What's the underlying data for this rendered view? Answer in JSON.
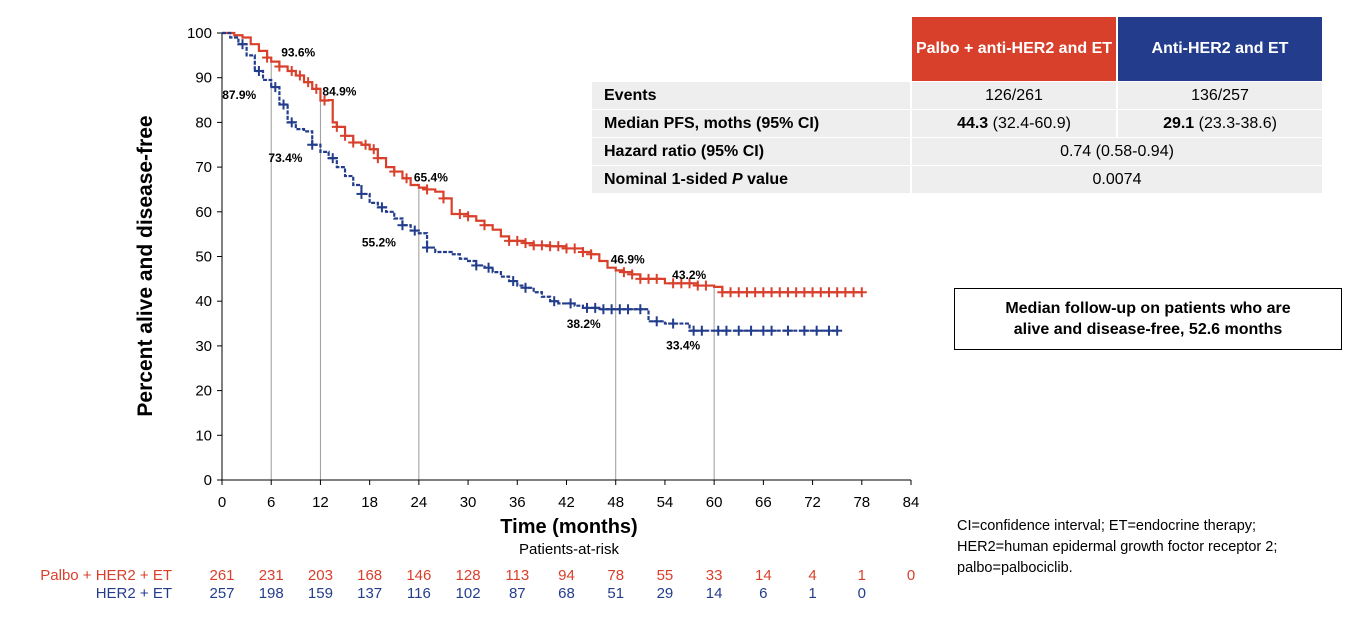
{
  "chart_data": {
    "type": "line",
    "ylabel": "Percent alive and disease-free",
    "xlabel": "Time (months)",
    "xlim": [
      0,
      84
    ],
    "ylim": [
      0,
      100
    ],
    "x_ticks": [
      "0",
      "6",
      "12",
      "18",
      "24",
      "30",
      "36",
      "42",
      "48",
      "54",
      "60",
      "66",
      "72",
      "78",
      "84"
    ],
    "y_ticks": [
      "0",
      "10",
      "20",
      "30",
      "40",
      "50",
      "60",
      "70",
      "80",
      "90",
      "100"
    ],
    "step": true,
    "series": [
      {
        "name": "Palbo + anti-HER2 and ET",
        "color": "#d9402c",
        "points": [
          [
            0,
            100
          ],
          [
            1.5,
            99.5
          ],
          [
            2.5,
            99
          ],
          [
            3.5,
            97.5
          ],
          [
            4.5,
            96
          ],
          [
            5.5,
            94.5
          ],
          [
            6,
            93.6
          ],
          [
            7,
            92.5
          ],
          [
            8,
            91.5
          ],
          [
            9,
            90.5
          ],
          [
            10,
            89
          ],
          [
            11,
            87.5
          ],
          [
            12,
            84.9
          ],
          [
            13,
            85
          ],
          [
            13.5,
            80
          ],
          [
            14,
            79
          ],
          [
            15,
            77
          ],
          [
            16,
            75.5
          ],
          [
            17,
            75
          ],
          [
            18,
            74
          ],
          [
            19,
            72
          ],
          [
            20,
            70
          ],
          [
            21,
            69
          ],
          [
            22,
            67.5
          ],
          [
            23,
            66
          ],
          [
            24,
            65.4
          ],
          [
            25,
            65
          ],
          [
            26,
            64.5
          ],
          [
            27,
            63
          ],
          [
            28,
            59.5
          ],
          [
            30,
            59
          ],
          [
            31,
            58
          ],
          [
            32,
            57
          ],
          [
            33,
            56
          ],
          [
            34,
            54.5
          ],
          [
            35,
            53.5
          ],
          [
            36,
            53.5
          ],
          [
            37,
            53
          ],
          [
            38,
            52.5
          ],
          [
            40,
            52.3
          ],
          [
            42,
            51.8
          ],
          [
            44,
            51
          ],
          [
            45,
            50.5
          ],
          [
            46,
            49
          ],
          [
            47,
            47.5
          ],
          [
            48,
            46.9
          ],
          [
            49,
            46.5
          ],
          [
            50,
            46
          ],
          [
            51,
            45
          ],
          [
            54,
            44
          ],
          [
            56,
            44
          ],
          [
            58,
            43.5
          ],
          [
            60,
            43.2
          ],
          [
            61,
            42
          ],
          [
            65,
            42
          ],
          [
            78,
            42
          ]
        ],
        "censor_x": [
          5.5,
          7,
          8.5,
          9.5,
          10.5,
          11.5,
          12.5,
          14,
          15,
          16,
          17.5,
          18.5,
          19,
          21,
          22.5,
          25,
          27,
          29,
          30,
          32,
          35,
          36,
          37,
          38,
          39,
          40,
          41,
          42,
          43,
          44,
          45,
          49,
          50,
          51,
          52,
          53,
          55,
          56,
          57,
          58,
          59,
          61,
          62,
          63,
          64,
          65,
          66,
          67,
          68,
          69,
          70,
          71,
          72,
          73,
          74,
          75,
          76,
          77,
          78
        ]
      },
      {
        "name": "Anti-HER2 and ET",
        "color": "#233d8c",
        "points": [
          [
            0,
            100
          ],
          [
            1,
            99
          ],
          [
            2,
            97.5
          ],
          [
            3,
            95
          ],
          [
            4,
            91.5
          ],
          [
            5,
            89.5
          ],
          [
            6,
            87.9
          ],
          [
            7,
            84
          ],
          [
            8,
            80
          ],
          [
            9,
            78.5
          ],
          [
            10,
            78
          ],
          [
            11,
            75
          ],
          [
            12,
            73.4
          ],
          [
            13,
            72
          ],
          [
            14,
            70
          ],
          [
            15,
            68
          ],
          [
            16,
            66
          ],
          [
            17,
            64
          ],
          [
            18,
            62
          ],
          [
            19,
            61
          ],
          [
            20,
            60
          ],
          [
            21,
            58.5
          ],
          [
            22,
            57
          ],
          [
            23,
            55.8
          ],
          [
            24,
            55.2
          ],
          [
            25,
            52
          ],
          [
            26,
            51
          ],
          [
            28,
            50.5
          ],
          [
            29,
            49.5
          ],
          [
            30,
            49
          ],
          [
            31,
            48
          ],
          [
            32,
            47.5
          ],
          [
            33,
            46.5
          ],
          [
            34,
            45.5
          ],
          [
            35,
            44.5
          ],
          [
            36,
            43.5
          ],
          [
            37,
            43
          ],
          [
            38,
            42
          ],
          [
            39,
            41
          ],
          [
            40,
            40
          ],
          [
            41,
            39.5
          ],
          [
            42,
            39.5
          ],
          [
            43,
            39
          ],
          [
            44,
            38.5
          ],
          [
            46,
            38.2
          ],
          [
            48,
            38.2
          ],
          [
            52,
            35.5
          ],
          [
            54,
            35
          ],
          [
            56,
            35
          ],
          [
            57,
            33.4
          ],
          [
            60,
            33.4
          ],
          [
            62,
            33.4
          ],
          [
            75,
            33.4
          ]
        ],
        "censor_x": [
          2.5,
          4.5,
          6.5,
          7.5,
          8.5,
          11,
          13.5,
          17,
          19.5,
          22,
          23.5,
          25,
          31,
          32.5,
          35.5,
          37,
          40.5,
          42.5,
          44.5,
          45.5,
          46.5,
          47.5,
          48.5,
          49.5,
          51,
          53,
          55,
          57.5,
          58.5,
          60.5,
          61.5,
          63,
          64.5,
          66,
          67,
          69,
          71,
          72.5,
          74,
          75
        ]
      }
    ],
    "annotations": [
      {
        "text": "93.6%",
        "x": 6,
        "y": 93.6,
        "series": 0
      },
      {
        "text": "84.9%",
        "x": 12,
        "y": 84.9,
        "series": 0
      },
      {
        "text": "65.4%",
        "x": 24,
        "y": 65.4,
        "series": 0
      },
      {
        "text": "46.9%",
        "x": 48,
        "y": 46.9,
        "series": 0
      },
      {
        "text": "43.2%",
        "x": 60,
        "y": 43.2,
        "series": 0
      },
      {
        "text": "87.9%",
        "x": 6,
        "y": 87.9,
        "series": 1
      },
      {
        "text": "73.4%",
        "x": 12,
        "y": 73.4,
        "series": 1
      },
      {
        "text": "55.2%",
        "x": 24,
        "y": 55.2,
        "series": 1
      },
      {
        "text": "38.2%",
        "x": 48,
        "y": 38.2,
        "series": 1
      },
      {
        "text": "33.4%",
        "x": 60,
        "y": 33.4,
        "series": 1
      }
    ],
    "reference_x": [
      6,
      12,
      24,
      48,
      60
    ]
  },
  "risk_table": {
    "title": "Patients-at-risk",
    "rows": [
      {
        "label": "Palbo + HER2 + ET",
        "color": "#d9402c",
        "values": [
          "261",
          "231",
          "203",
          "168",
          "146",
          "128",
          "113",
          "94",
          "78",
          "55",
          "33",
          "14",
          "4",
          "1",
          "0"
        ]
      },
      {
        "label": "HER2 + ET",
        "color": "#233d8c",
        "values": [
          "257",
          "198",
          "159",
          "137",
          "116",
          "102",
          "87",
          "68",
          "51",
          "29",
          "14",
          "6",
          "1",
          "0"
        ]
      }
    ]
  },
  "summary_table": {
    "head1": "Palbo + anti-HER2 and ET",
    "head2": "Anti-HER2 and ET",
    "rows": {
      "events_label": "Events",
      "events_a": "126/261",
      "events_b": "136/257",
      "pfs_label": "Median PFS, moths (95% CI)",
      "pfs_a_bold": "44.3",
      "pfs_a_rest": " (32.4-60.9)",
      "pfs_b_bold": "29.1",
      "pfs_b_rest": " (23.3-38.6)",
      "hr_label": "Hazard ratio (95% CI)",
      "hr_value": "0.74 (0.58-0.94)",
      "p_label_a": "Nominal 1-sided ",
      "p_label_p": "P",
      "p_label_b": " value",
      "p_value": "0.0074"
    }
  },
  "followup_note": {
    "line1": "Median follow-up on patients who are",
    "line2": "alive and disease-free, 52.6 months"
  },
  "footnote": {
    "line1": "CI=confidence interval; ET=endocrine therapy;",
    "line2": "HER2=human epidermal growth foctor receptor 2;",
    "line3": "palbo=palbociclib."
  }
}
